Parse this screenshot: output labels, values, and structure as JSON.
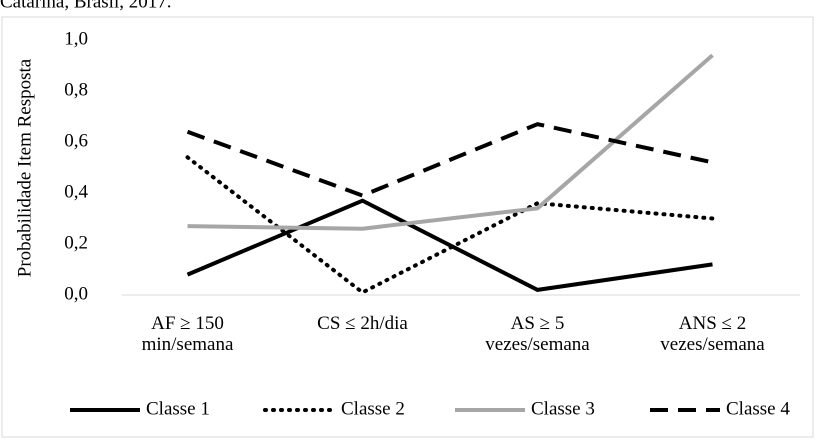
{
  "caption": "Catarina, Brasil, 2017.",
  "chart_data": {
    "type": "line",
    "ylabel": "Probabilidade Item Resposta",
    "categories": [
      "AF ≥ 150 min/semana",
      "CS ≤ 2h/dia",
      "AS ≥ 5 vezes/semana",
      "ANS ≤ 2 vezes/semana"
    ],
    "series": [
      {
        "name": "Classe 1",
        "color": "#000000",
        "dash": "solid",
        "values": [
          0.08,
          0.37,
          0.02,
          0.12
        ]
      },
      {
        "name": "Classe 2",
        "color": "#000000",
        "dash": "dotted",
        "values": [
          0.54,
          0.01,
          0.36,
          0.3
        ]
      },
      {
        "name": "Classe 3",
        "color": "#a6a6a6",
        "dash": "solid",
        "values": [
          0.27,
          0.26,
          0.34,
          0.94
        ]
      },
      {
        "name": "Classe 4",
        "color": "#000000",
        "dash": "dashed",
        "values": [
          0.64,
          0.39,
          0.67,
          0.52
        ]
      }
    ],
    "ylim": [
      0,
      1
    ],
    "yticks": [
      {
        "value": 0,
        "label": "0,0"
      },
      {
        "value": 0.2,
        "label": "0,2"
      },
      {
        "value": 0.4,
        "label": "0,4"
      },
      {
        "value": 0.6,
        "label": "0,6"
      },
      {
        "value": 0.8,
        "label": "0,8"
      },
      {
        "value": 1,
        "label": "1,0"
      }
    ],
    "grid": false,
    "legend": "bottom"
  }
}
